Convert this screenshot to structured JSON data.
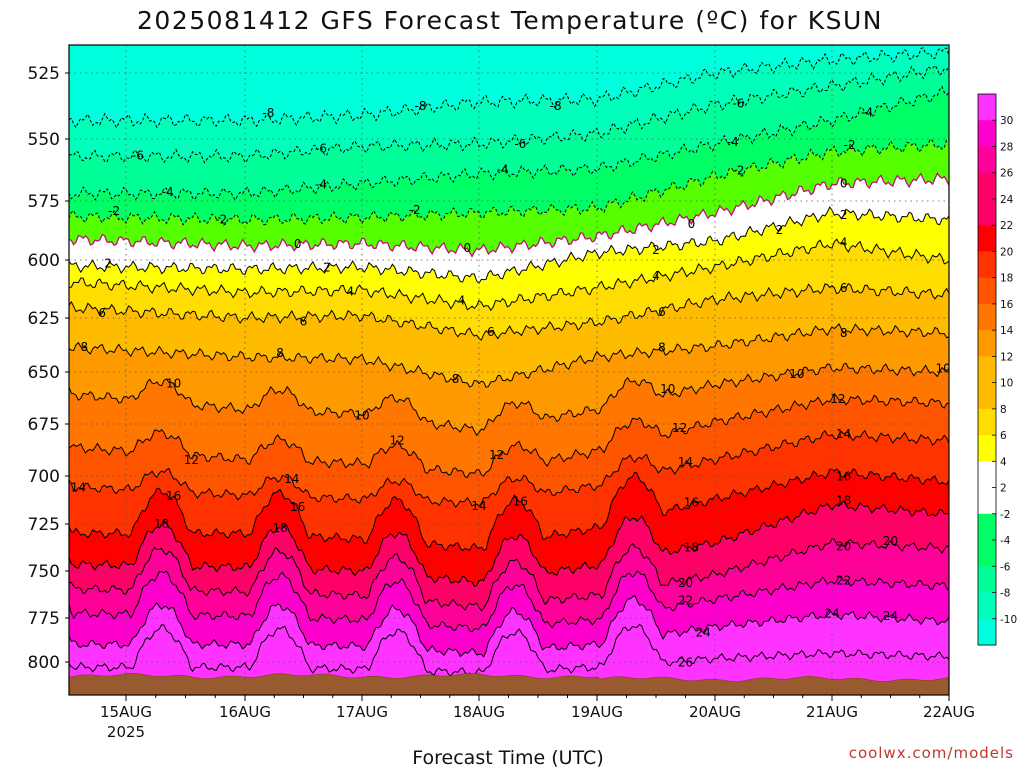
{
  "title": "2025081412 GFS Forecast Temperature (ºC) for KSUN",
  "xlabel": "Forecast Time (UTC)",
  "credit": "coolwx.com/models",
  "colors": {
    "bands": [
      "#00ffdd",
      "#00ffbb",
      "#00ff99",
      "#00ff66",
      "#55ff00",
      "#ffffff",
      "#ffff00",
      "#ffdd00",
      "#ffbb00",
      "#ff9900",
      "#ff7700",
      "#ff5500",
      "#ff3300",
      "#ff0000",
      "#ff0066",
      "#ff0099",
      "#ff00cc",
      "#ff33ff"
    ],
    "ground": "#9a5a2f",
    "zero_line": "#c0107a",
    "contour": "#000000"
  },
  "chart_data": {
    "type": "heatmap",
    "subtype": "time-height contour",
    "title": "2025081412 GFS Forecast Temperature (ºC) for KSUN",
    "xlabel": "Forecast Time (UTC)",
    "ylabel": "",
    "x_ticks": [
      "15AUG",
      "16AUG",
      "17AUG",
      "18AUG",
      "19AUG",
      "20AUG",
      "21AUG",
      "22AUG"
    ],
    "x_subtick": "2025",
    "y_ticks": [
      525,
      550,
      575,
      600,
      625,
      650,
      675,
      700,
      725,
      750,
      775,
      800
    ],
    "y_range_hpa": [
      513,
      815
    ],
    "y_inverted": true,
    "grid": true,
    "colorbar_ticks": [
      30,
      28,
      26,
      24,
      22,
      20,
      18,
      16,
      14,
      12,
      10,
      8,
      6,
      4,
      2,
      -2,
      -4,
      -6,
      -8,
      -10
    ],
    "series": [
      {
        "day": 1,
        "levels": [
          [
            -8,
            543
          ],
          [
            -6,
            557
          ],
          [
            -4,
            572
          ],
          [
            -2,
            582
          ],
          [
            0,
            592
          ],
          [
            2,
            603
          ],
          [
            4,
            611
          ],
          [
            6,
            622
          ],
          [
            8,
            640
          ],
          [
            10,
            663
          ],
          [
            12,
            688
          ],
          [
            14,
            707
          ],
          [
            16,
            730
          ],
          [
            18,
            747
          ],
          [
            20,
            760
          ],
          [
            22,
            773
          ],
          [
            24,
            790
          ],
          [
            26,
            803
          ]
        ]
      },
      {
        "day": 2,
        "levels": [
          [
            -8,
            543
          ],
          [
            -6,
            557
          ],
          [
            -4,
            572
          ],
          [
            -2,
            583
          ],
          [
            0,
            594
          ],
          [
            2,
            604
          ],
          [
            4,
            614
          ],
          [
            6,
            625
          ],
          [
            8,
            643
          ],
          [
            10,
            668
          ],
          [
            12,
            692
          ],
          [
            14,
            710
          ],
          [
            16,
            730
          ],
          [
            18,
            748
          ],
          [
            20,
            761
          ],
          [
            22,
            774
          ],
          [
            24,
            790
          ],
          [
            26,
            803
          ]
        ]
      },
      {
        "day": 3,
        "levels": [
          [
            -8,
            541
          ],
          [
            -6,
            553
          ],
          [
            -4,
            568
          ],
          [
            -2,
            582
          ],
          [
            0,
            593
          ],
          [
            2,
            603
          ],
          [
            4,
            613
          ],
          [
            6,
            624
          ],
          [
            8,
            644
          ],
          [
            10,
            670
          ],
          [
            12,
            694
          ],
          [
            14,
            712
          ],
          [
            16,
            733
          ],
          [
            18,
            750
          ],
          [
            20,
            763
          ],
          [
            22,
            776
          ],
          [
            24,
            791
          ],
          [
            26,
            804
          ]
        ]
      },
      {
        "day": 4,
        "levels": [
          [
            -8,
            536
          ],
          [
            -6,
            552
          ],
          [
            -4,
            564
          ],
          [
            -2,
            580
          ],
          [
            0,
            596
          ],
          [
            2,
            608
          ],
          [
            4,
            620
          ],
          [
            6,
            633
          ],
          [
            8,
            656
          ],
          [
            10,
            678
          ],
          [
            12,
            699
          ],
          [
            14,
            714
          ],
          [
            16,
            738
          ],
          [
            18,
            756
          ],
          [
            20,
            769
          ],
          [
            22,
            781
          ],
          [
            24,
            795
          ],
          [
            26,
            806
          ]
        ]
      },
      {
        "day": 5,
        "levels": [
          [
            -8,
            535
          ],
          [
            -6,
            548
          ],
          [
            -4,
            562
          ],
          [
            -2,
            578
          ],
          [
            0,
            590
          ],
          [
            2,
            597
          ],
          [
            4,
            612
          ],
          [
            6,
            627
          ],
          [
            8,
            643
          ],
          [
            10,
            668
          ],
          [
            12,
            688
          ],
          [
            14,
            705
          ],
          [
            16,
            727
          ],
          [
            18,
            747
          ],
          [
            20,
            763
          ],
          [
            22,
            776
          ],
          [
            24,
            790
          ],
          [
            26,
            803
          ]
        ]
      },
      {
        "day": 6,
        "levels": [
          [
            -8,
            525
          ],
          [
            -6,
            537
          ],
          [
            -4,
            552
          ],
          [
            -2,
            565
          ],
          [
            0,
            580
          ],
          [
            2,
            592
          ],
          [
            4,
            603
          ],
          [
            6,
            617
          ],
          [
            8,
            638
          ],
          [
            10,
            656
          ],
          [
            12,
            674
          ],
          [
            14,
            692
          ],
          [
            16,
            712
          ],
          [
            18,
            735
          ],
          [
            20,
            752
          ],
          [
            22,
            765
          ],
          [
            24,
            780
          ],
          [
            26,
            798
          ]
        ]
      },
      {
        "day": 7,
        "levels": [
          [
            -8,
            520
          ],
          [
            -6,
            530
          ],
          [
            -4,
            543
          ],
          [
            -2,
            555
          ],
          [
            0,
            568
          ],
          [
            2,
            580
          ],
          [
            4,
            593
          ],
          [
            6,
            612
          ],
          [
            8,
            630
          ],
          [
            10,
            648
          ],
          [
            12,
            663
          ],
          [
            14,
            680
          ],
          [
            16,
            698
          ],
          [
            18,
            715
          ],
          [
            20,
            735
          ],
          [
            22,
            755
          ],
          [
            24,
            773
          ],
          [
            26,
            795
          ]
        ]
      },
      {
        "day": 8,
        "levels": [
          [
            -8,
            517
          ],
          [
            -6,
            523
          ],
          [
            -4,
            532
          ],
          [
            -2,
            552
          ],
          [
            0,
            566
          ],
          [
            2,
            583
          ],
          [
            4,
            600
          ],
          [
            6,
            615
          ],
          [
            8,
            632
          ],
          [
            10,
            650
          ],
          [
            12,
            665
          ],
          [
            14,
            683
          ],
          [
            16,
            703
          ],
          [
            18,
            720
          ],
          [
            20,
            738
          ],
          [
            22,
            758
          ],
          [
            24,
            777
          ],
          [
            26,
            797
          ]
        ]
      }
    ]
  },
  "contour_labels": [
    {
      "t": "-8"
    },
    {
      "t": "-8"
    },
    {
      "t": "-8"
    },
    {
      "t": "-6"
    },
    {
      "t": "-6"
    },
    {
      "t": "-6"
    },
    {
      "t": "-6"
    },
    {
      "t": "-4"
    },
    {
      "t": "-4"
    },
    {
      "t": "-4"
    },
    {
      "t": "-4"
    },
    {
      "t": "-4"
    },
    {
      "t": "-2"
    },
    {
      "t": "-2"
    },
    {
      "t": "-2"
    },
    {
      "t": "-2"
    },
    {
      "t": "-2"
    },
    {
      "t": "2"
    },
    {
      "t": "2"
    },
    {
      "t": "2"
    },
    {
      "t": "2"
    },
    {
      "t": "2"
    },
    {
      "t": "0"
    },
    {
      "t": "0"
    },
    {
      "t": "0"
    },
    {
      "t": "0"
    },
    {
      "t": "4"
    },
    {
      "t": "4"
    },
    {
      "t": "4"
    },
    {
      "t": "4"
    },
    {
      "t": "6"
    },
    {
      "t": "6"
    },
    {
      "t": "6"
    },
    {
      "t": "6"
    },
    {
      "t": "6"
    },
    {
      "t": "8"
    },
    {
      "t": "8"
    },
    {
      "t": "8"
    },
    {
      "t": "8"
    },
    {
      "t": "8"
    },
    {
      "t": "10"
    },
    {
      "t": "10"
    },
    {
      "t": "10"
    },
    {
      "t": "10"
    },
    {
      "t": "10"
    },
    {
      "t": "12"
    },
    {
      "t": "12"
    },
    {
      "t": "12"
    },
    {
      "t": "12"
    },
    {
      "t": "12"
    },
    {
      "t": "14"
    },
    {
      "t": "14"
    },
    {
      "t": "14"
    },
    {
      "t": "14"
    },
    {
      "t": "14"
    },
    {
      "t": "16"
    },
    {
      "t": "16"
    },
    {
      "t": "16"
    },
    {
      "t": "16"
    },
    {
      "t": "16"
    },
    {
      "t": "18"
    },
    {
      "t": "18"
    },
    {
      "t": "18"
    },
    {
      "t": "18"
    },
    {
      "t": "20"
    },
    {
      "t": "20"
    },
    {
      "t": "20"
    },
    {
      "t": "22"
    },
    {
      "t": "22"
    },
    {
      "t": "24"
    },
    {
      "t": "24"
    },
    {
      "t": "24"
    },
    {
      "t": "26"
    }
  ]
}
